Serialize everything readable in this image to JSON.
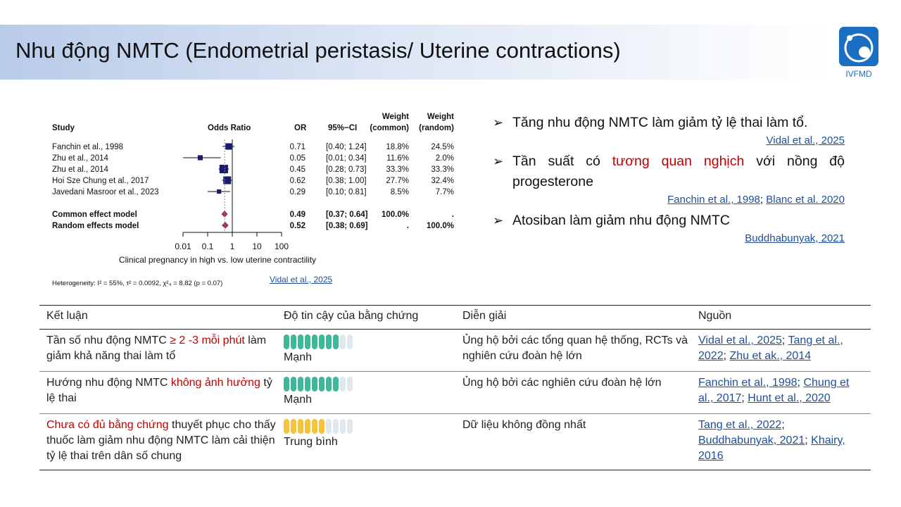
{
  "header": {
    "title": "Nhu động NMTC (Endometrial peristasis/ Uterine contractions)",
    "logo_text": "IVFMD"
  },
  "forest_plot": {
    "col_study": "Study",
    "col_or_label": "Odds Ratio",
    "col_or": "OR",
    "col_ci": "95%−CI",
    "col_w_common": [
      "Weight",
      "(common)"
    ],
    "col_w_random": [
      "Weight",
      "(random)"
    ],
    "studies": [
      {
        "name": "Fanchin et al., 1998",
        "or": "0.71",
        "ci": "[0.40; 1.24]",
        "w_common": "18.8%",
        "w_random": "24.5%"
      },
      {
        "name": "Zhu et al., 2014",
        "or": "0.05",
        "ci": "[0.01; 0.34]",
        "w_common": "11.6%",
        "w_random": "2.0%"
      },
      {
        "name": "Zhu et al., 2014",
        "or": "0.45",
        "ci": "[0.28; 0.73]",
        "w_common": "33.3%",
        "w_random": "33.3%"
      },
      {
        "name": "Hoi Sze Chung et al., 2017",
        "or": "0.62",
        "ci": "[0.38; 1.00]",
        "w_common": "27.7%",
        "w_random": "32.4%"
      },
      {
        "name": "Javedani Masroor et al., 2023",
        "or": "0.29",
        "ci": "[0.10; 0.81]",
        "w_common": "8.5%",
        "w_random": "7.7%"
      }
    ],
    "pooled": [
      {
        "name": "Common effect model",
        "or": "0.49",
        "ci": "[0.37; 0.64]",
        "w_common": "100.0%",
        "w_random": "."
      },
      {
        "name": "Random effects model",
        "or": "0.52",
        "ci": "[0.38; 0.69]",
        "w_common": ".",
        "w_random": "100.0%"
      }
    ],
    "axis_ticks": [
      "0.01",
      "0.1",
      "1",
      "10",
      "100"
    ],
    "axis_label": "Clinical pregnancy in high vs. low uterine contractility",
    "heterogeneity": "Heterogeneity: I² = 55%, τ² = 0.0092, χ²₄ = 8.82 (p = 0.07)",
    "citation": "Vidal et al., 2025",
    "colors": {
      "box": "#1a1a6e",
      "diamond": "#a8324a"
    }
  },
  "chart_data": {
    "type": "forest",
    "title": "",
    "xlabel": "Clinical pregnancy in high vs. low uterine contractility",
    "x_scale": "log",
    "xlim": [
      0.01,
      100
    ],
    "ticks": [
      0.01,
      0.1,
      1,
      10,
      100
    ],
    "studies": [
      {
        "name": "Fanchin et al., 1998",
        "or": 0.71,
        "lo": 0.4,
        "hi": 1.24,
        "w_common": 18.8,
        "w_random": 24.5
      },
      {
        "name": "Zhu et al., 2014",
        "or": 0.05,
        "lo": 0.01,
        "hi": 0.34,
        "w_common": 11.6,
        "w_random": 2.0
      },
      {
        "name": "Zhu et al., 2014",
        "or": 0.45,
        "lo": 0.28,
        "hi": 0.73,
        "w_common": 33.3,
        "w_random": 33.3
      },
      {
        "name": "Hoi Sze Chung et al., 2017",
        "or": 0.62,
        "lo": 0.38,
        "hi": 1.0,
        "w_common": 27.7,
        "w_random": 32.4
      },
      {
        "name": "Javedani Masroor et al., 2023",
        "or": 0.29,
        "lo": 0.1,
        "hi": 0.81,
        "w_common": 8.5,
        "w_random": 7.7
      }
    ],
    "pooled": [
      {
        "name": "Common effect model",
        "or": 0.49,
        "lo": 0.37,
        "hi": 0.64
      },
      {
        "name": "Random effects model",
        "or": 0.52,
        "lo": 0.38,
        "hi": 0.69
      }
    ]
  },
  "bullets": {
    "b1": "Tăng nhu động NMTC làm giảm tỷ lệ thai làm tổ.",
    "b1_ref": "Vidal et al., 2025",
    "b2_pre": "Tần suất có",
    "b2_red": "tương quan nghịch",
    "b2_post": "với nồng độ",
    "b2_line2": "progesterone",
    "b2_ref1": "Fanchin et al., 1998",
    "b2_sep": ";",
    "b2_ref2": "Blanc et al. 2020",
    "b3": "Atosiban làm giảm nhu động NMTC",
    "b3_ref": "Buddhabunyak, 2021",
    "arrow": "➢"
  },
  "table": {
    "headers": [
      "Kết luận",
      "Độ tin cậy của bằng chứng",
      "Diễn giải",
      "Nguồn"
    ],
    "rows": [
      {
        "c1_pre": "Tần số nhu động NMTC ",
        "c1_red": "≥ 2 -3 mỗi phút",
        "c1_post": " làm giảm khả năng thai làm tổ",
        "level": "Mạnh",
        "filled": 8,
        "kind": "strong",
        "interp": "Ủng hộ bởi các tổng quan hệ thống, RCTs và nghiên cứu đoàn hệ lớn",
        "src1": "Vidal et al., 2025",
        "src2": "Tang et al., 2022",
        "src3": "Zhu et ak., 2014"
      },
      {
        "c1_pre": "Hướng nhu động NMTC ",
        "c1_red": "không ảnh hưởng",
        "c1_post": " tỷ lệ thai",
        "level": "Mạnh",
        "filled": 8,
        "kind": "strong",
        "interp": "Ủng hộ bởi các nghiên cứu đoàn hệ lớn",
        "src1": "Fanchin et al., 1998",
        "src2": "Chung et al., 2017",
        "src3": "Hunt et al., 2020"
      },
      {
        "c1_pre": "",
        "c1_red": "Chưa có đủ bằng chứng",
        "c1_post": " thuyết phục cho thấy thuốc làm giảm nhu động NMTC làm cải thiện tỷ lệ thai trên dân số chung",
        "level": "Trung bình",
        "filled": 6,
        "kind": "moderate",
        "interp": "Dữ liệu không đồng nhất",
        "src1": "Tang et al., 2022",
        "src2": "Buddhabunyak, 2021",
        "src3": "Khairy, 2016"
      }
    ],
    "segments_total": 10,
    "sep": "; "
  }
}
